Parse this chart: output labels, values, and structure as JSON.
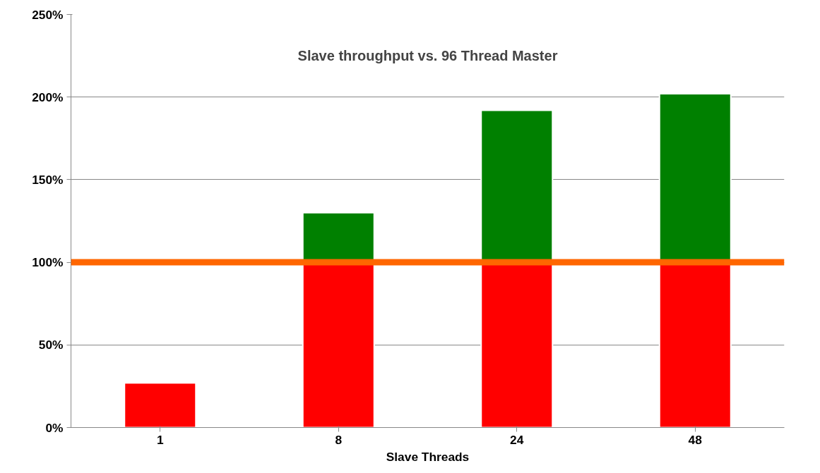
{
  "chart_data": {
    "type": "bar",
    "title": "Slave throughput vs. 96 Thread Master",
    "xlabel": "Slave Threads",
    "categories": [
      "1",
      "8",
      "24",
      "48"
    ],
    "stacked": true,
    "series": [
      {
        "color": "#ff0000",
        "values": [
          27,
          100,
          100,
          100
        ]
      },
      {
        "color": "#008000",
        "values": [
          null,
          30,
          92,
          102
        ]
      }
    ],
    "ylim": [
      0,
      250
    ],
    "yticks": [
      {
        "value": 0,
        "label": "0%"
      },
      {
        "value": 50,
        "label": "50%"
      },
      {
        "value": 100,
        "label": "100%"
      },
      {
        "value": 150,
        "label": "150%"
      },
      {
        "value": 200,
        "label": "200%"
      },
      {
        "value": 250,
        "label": "250%"
      }
    ],
    "ref_lines": [
      {
        "axis": "y",
        "value": 100,
        "color": "#ff6600"
      }
    ],
    "grid": "y"
  }
}
